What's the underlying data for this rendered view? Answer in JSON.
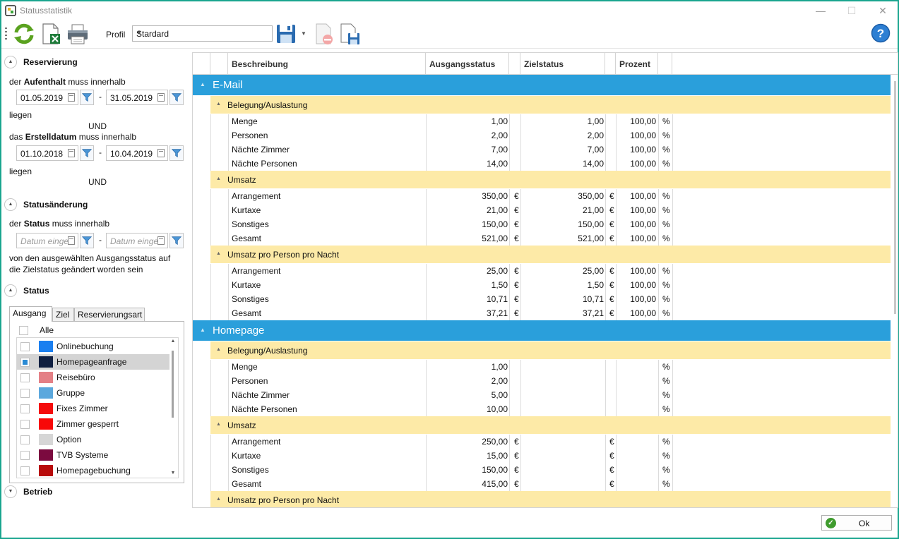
{
  "window": {
    "title": "Statusstatistik",
    "minimize": "—",
    "maximize": "☐",
    "close": "✕",
    "accent": "#1aa58f"
  },
  "toolbar": {
    "profil_label": "Profil",
    "profil_value": "Stardard",
    "icons": [
      "refresh-icon",
      "excel-export-icon",
      "print-icon",
      "save-icon",
      "save-dropdown-icon",
      "delete-profile-icon",
      "save-as-icon",
      "help-icon"
    ]
  },
  "left": {
    "reservierung": {
      "title": "Reservierung",
      "aufenthalt_pre": "der ",
      "aufenthalt_bold": "Aufenthalt",
      "aufenthalt_post": " muss innerhalb",
      "aufenthalt_from": "01.05.2019",
      "aufenthalt_to": "31.05.2019",
      "liegen1": "liegen",
      "und1": "UND",
      "erstell_pre": "das ",
      "erstell_bold": "Erstelldatum",
      "erstell_post": " muss innerhalb",
      "erstell_from": "01.10.2018",
      "erstell_to": "10.04.2019",
      "liegen2": "liegen",
      "und2": "UND"
    },
    "statusaenderung": {
      "title": "Statusänderung",
      "status_pre": "der ",
      "status_bold": "Status",
      "status_post": " muss innerhalb",
      "from_placeholder": "Datum einge",
      "to_placeholder": "Datum einge",
      "desc1": "von den ausgewählten Ausgangsstatus auf",
      "desc2": "die Zielstatus geändert worden sein"
    },
    "status": {
      "title": "Status",
      "tabs": [
        "Ausgang",
        "Ziel",
        "Reservierungsart"
      ],
      "alle": "Alle",
      "items": [
        {
          "label": "Onlinebuchung",
          "color": "#1a7ff0",
          "checked": false
        },
        {
          "label": "Homepageanfrage",
          "color": "#0f1f40",
          "checked": true
        },
        {
          "label": "Reisebüro",
          "color": "#e48086",
          "checked": false
        },
        {
          "label": "Gruppe",
          "color": "#5ba8dd",
          "checked": false
        },
        {
          "label": "Fixes Zimmer",
          "color": "#f50c0c",
          "checked": false
        },
        {
          "label": "Zimmer gesperrt",
          "color": "#f80808",
          "checked": false
        },
        {
          "label": "Option",
          "color": "#d6d6d6",
          "checked": false
        },
        {
          "label": "TVB Systeme",
          "color": "#7b0a3f",
          "checked": false
        },
        {
          "label": "Homepagebuchung",
          "color": "#b80b0b",
          "checked": false
        }
      ]
    },
    "betrieb": {
      "title": "Betrieb"
    }
  },
  "grid": {
    "headers": [
      "Beschreibung",
      "Ausgangsstatus",
      "Zielstatus",
      "Prozent"
    ],
    "groups": [
      {
        "name": "E-Mail",
        "subgroups": [
          {
            "name": "Belegung/Auslastung",
            "rows": [
              {
                "desc": "Menge",
                "v1": "1,00",
                "u1": "",
                "v2": "1,00",
                "u2": "",
                "v3": "100,00",
                "u3": "%"
              },
              {
                "desc": "Personen",
                "v1": "2,00",
                "u1": "",
                "v2": "2,00",
                "u2": "",
                "v3": "100,00",
                "u3": "%"
              },
              {
                "desc": "Nächte Zimmer",
                "v1": "7,00",
                "u1": "",
                "v2": "7,00",
                "u2": "",
                "v3": "100,00",
                "u3": "%"
              },
              {
                "desc": "Nächte Personen",
                "v1": "14,00",
                "u1": "",
                "v2": "14,00",
                "u2": "",
                "v3": "100,00",
                "u3": "%"
              }
            ]
          },
          {
            "name": "Umsatz",
            "rows": [
              {
                "desc": "Arrangement",
                "v1": "350,00",
                "u1": "€",
                "v2": "350,00",
                "u2": "€",
                "v3": "100,00",
                "u3": "%"
              },
              {
                "desc": "Kurtaxe",
                "v1": "21,00",
                "u1": "€",
                "v2": "21,00",
                "u2": "€",
                "v3": "100,00",
                "u3": "%"
              },
              {
                "desc": "Sonstiges",
                "v1": "150,00",
                "u1": "€",
                "v2": "150,00",
                "u2": "€",
                "v3": "100,00",
                "u3": "%"
              },
              {
                "desc": "Gesamt",
                "v1": "521,00",
                "u1": "€",
                "v2": "521,00",
                "u2": "€",
                "v3": "100,00",
                "u3": "%"
              }
            ]
          },
          {
            "name": "Umsatz pro Person pro Nacht",
            "rows": [
              {
                "desc": "Arrangement",
                "v1": "25,00",
                "u1": "€",
                "v2": "25,00",
                "u2": "€",
                "v3": "100,00",
                "u3": "%"
              },
              {
                "desc": "Kurtaxe",
                "v1": "1,50",
                "u1": "€",
                "v2": "1,50",
                "u2": "€",
                "v3": "100,00",
                "u3": "%"
              },
              {
                "desc": "Sonstiges",
                "v1": "10,71",
                "u1": "€",
                "v2": "10,71",
                "u2": "€",
                "v3": "100,00",
                "u3": "%"
              },
              {
                "desc": "Gesamt",
                "v1": "37,21",
                "u1": "€",
                "v2": "37,21",
                "u2": "€",
                "v3": "100,00",
                "u3": "%"
              }
            ]
          }
        ]
      },
      {
        "name": "Homepage",
        "subgroups": [
          {
            "name": "Belegung/Auslastung",
            "rows": [
              {
                "desc": "Menge",
                "v1": "1,00",
                "u1": "",
                "v2": "",
                "u2": "",
                "v3": "",
                "u3": "%"
              },
              {
                "desc": "Personen",
                "v1": "2,00",
                "u1": "",
                "v2": "",
                "u2": "",
                "v3": "",
                "u3": "%"
              },
              {
                "desc": "Nächte Zimmer",
                "v1": "5,00",
                "u1": "",
                "v2": "",
                "u2": "",
                "v3": "",
                "u3": "%"
              },
              {
                "desc": "Nächte Personen",
                "v1": "10,00",
                "u1": "",
                "v2": "",
                "u2": "",
                "v3": "",
                "u3": "%"
              }
            ]
          },
          {
            "name": "Umsatz",
            "rows": [
              {
                "desc": "Arrangement",
                "v1": "250,00",
                "u1": "€",
                "v2": "",
                "u2": "€",
                "v3": "",
                "u3": "%"
              },
              {
                "desc": "Kurtaxe",
                "v1": "15,00",
                "u1": "€",
                "v2": "",
                "u2": "€",
                "v3": "",
                "u3": "%"
              },
              {
                "desc": "Sonstiges",
                "v1": "150,00",
                "u1": "€",
                "v2": "",
                "u2": "€",
                "v3": "",
                "u3": "%"
              },
              {
                "desc": "Gesamt",
                "v1": "415,00",
                "u1": "€",
                "v2": "",
                "u2": "€",
                "v3": "",
                "u3": "%"
              }
            ]
          },
          {
            "name": "Umsatz pro Person pro Nacht",
            "rows": []
          }
        ]
      }
    ]
  },
  "footer": {
    "ok_label": "Ok"
  }
}
